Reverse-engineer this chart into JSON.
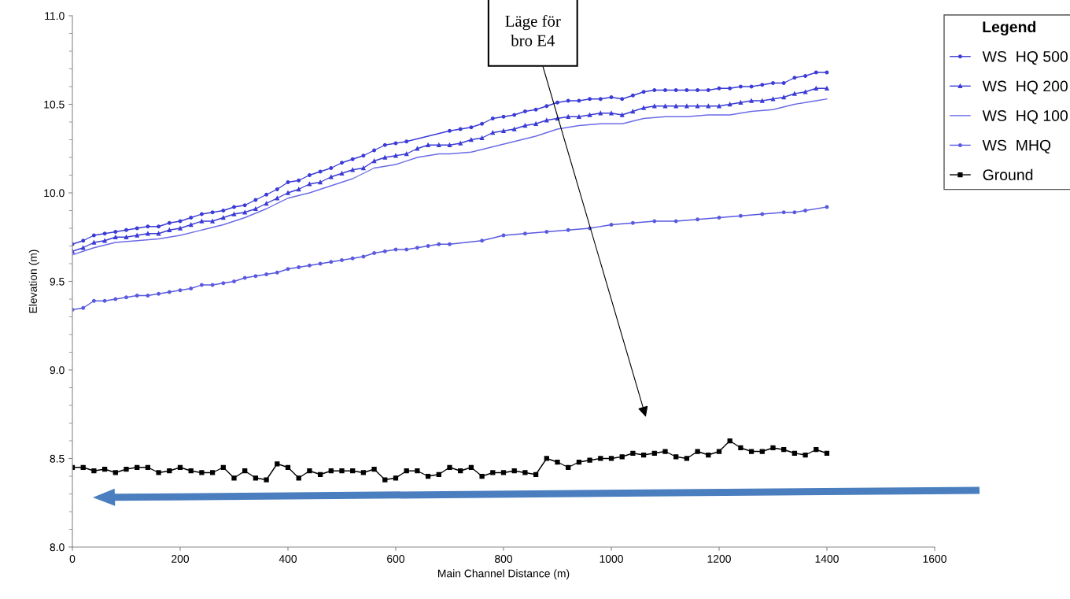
{
  "chart_data": {
    "type": "line",
    "xlabel": "Main Channel Distance (m)",
    "ylabel": "Elevation (m)",
    "legend_title": "Legend",
    "legend": "right",
    "grid": false,
    "xlim": [
      0,
      1600
    ],
    "xticks": [
      0,
      200,
      400,
      600,
      800,
      1000,
      1200,
      1400,
      1600
    ],
    "ylim": [
      8.0,
      11.0
    ],
    "yticks": [
      {
        "value": 8.0,
        "label": "8.0"
      },
      {
        "value": 8.5,
        "label": "8.5"
      },
      {
        "value": 9.0,
        "label": "9.0"
      },
      {
        "value": 9.5,
        "label": "9.5"
      },
      {
        "value": 10.0,
        "label": "10.0"
      },
      {
        "value": 10.5,
        "label": "10.5"
      },
      {
        "value": 11.0,
        "label": "11.0"
      }
    ],
    "annotations": [
      "Läge för\nbro E4"
    ],
    "series": [
      {
        "name": "WS  HQ 500",
        "color": "#3b3bd6",
        "marker": "circle",
        "x": [
          0,
          20,
          40,
          60,
          80,
          100,
          120,
          140,
          160,
          180,
          200,
          220,
          240,
          260,
          280,
          300,
          320,
          340,
          360,
          380,
          400,
          420,
          440,
          460,
          480,
          500,
          520,
          540,
          560,
          580,
          600,
          620,
          700,
          720,
          740,
          760,
          780,
          800,
          820,
          840,
          860,
          880,
          900,
          920,
          940,
          960,
          980,
          1000,
          1020,
          1040,
          1060,
          1080,
          1100,
          1120,
          1140,
          1160,
          1180,
          1200,
          1220,
          1240,
          1260,
          1280,
          1300,
          1320,
          1340,
          1360,
          1380,
          1400
        ],
        "values": [
          9.71,
          9.73,
          9.76,
          9.77,
          9.78,
          9.79,
          9.8,
          9.81,
          9.81,
          9.83,
          9.84,
          9.86,
          9.88,
          9.89,
          9.9,
          9.92,
          9.93,
          9.96,
          9.99,
          10.02,
          10.06,
          10.07,
          10.1,
          10.12,
          10.14,
          10.17,
          10.19,
          10.21,
          10.24,
          10.27,
          10.28,
          10.29,
          10.35,
          10.36,
          10.37,
          10.39,
          10.42,
          10.43,
          10.44,
          10.46,
          10.47,
          10.49,
          10.51,
          10.52,
          10.52,
          10.53,
          10.53,
          10.54,
          10.53,
          10.55,
          10.57,
          10.58,
          10.58,
          10.58,
          10.58,
          10.58,
          10.58,
          10.59,
          10.59,
          10.6,
          10.6,
          10.61,
          10.62,
          10.62,
          10.65,
          10.66,
          10.68,
          10.68
        ]
      },
      {
        "name": "WS  HQ 200",
        "color": "#3b3bd6",
        "marker": "triangle",
        "x": [
          0,
          20,
          40,
          60,
          80,
          100,
          120,
          140,
          160,
          180,
          200,
          220,
          240,
          260,
          280,
          300,
          320,
          340,
          360,
          380,
          400,
          420,
          440,
          460,
          480,
          500,
          520,
          540,
          560,
          580,
          600,
          620,
          640,
          660,
          680,
          700,
          720,
          740,
          760,
          780,
          800,
          820,
          840,
          860,
          880,
          900,
          920,
          940,
          960,
          980,
          1000,
          1020,
          1040,
          1060,
          1080,
          1100,
          1120,
          1140,
          1160,
          1180,
          1200,
          1220,
          1240,
          1260,
          1280,
          1300,
          1320,
          1340,
          1360,
          1380,
          1400
        ],
        "values": [
          9.67,
          9.69,
          9.72,
          9.73,
          9.75,
          9.75,
          9.76,
          9.77,
          9.77,
          9.79,
          9.8,
          9.82,
          9.84,
          9.84,
          9.86,
          9.88,
          9.89,
          9.91,
          9.94,
          9.97,
          10.0,
          10.02,
          10.05,
          10.06,
          10.09,
          10.11,
          10.13,
          10.14,
          10.18,
          10.2,
          10.21,
          10.22,
          10.25,
          10.27,
          10.27,
          10.27,
          10.28,
          10.3,
          10.31,
          10.34,
          10.35,
          10.36,
          10.38,
          10.39,
          10.41,
          10.42,
          10.43,
          10.43,
          10.44,
          10.45,
          10.45,
          10.44,
          10.46,
          10.48,
          10.49,
          10.49,
          10.49,
          10.49,
          10.49,
          10.49,
          10.49,
          10.5,
          10.51,
          10.52,
          10.52,
          10.53,
          10.54,
          10.56,
          10.57,
          10.59,
          10.59
        ]
      },
      {
        "name": "WS  HQ 100",
        "color": "#6b6be6",
        "marker": "none",
        "x": [
          0,
          40,
          80,
          120,
          160,
          200,
          240,
          280,
          320,
          360,
          400,
          440,
          480,
          520,
          560,
          600,
          640,
          680,
          700,
          740,
          780,
          820,
          860,
          900,
          940,
          980,
          1000,
          1020,
          1060,
          1100,
          1140,
          1180,
          1220,
          1260,
          1300,
          1340,
          1380,
          1400
        ],
        "values": [
          9.65,
          9.69,
          9.72,
          9.73,
          9.74,
          9.76,
          9.79,
          9.82,
          9.86,
          9.91,
          9.97,
          10.0,
          10.04,
          10.08,
          10.14,
          10.16,
          10.2,
          10.22,
          10.22,
          10.23,
          10.26,
          10.29,
          10.32,
          10.36,
          10.38,
          10.39,
          10.39,
          10.39,
          10.42,
          10.43,
          10.43,
          10.44,
          10.44,
          10.46,
          10.47,
          10.5,
          10.52,
          10.53
        ]
      },
      {
        "name": "WS  MHQ",
        "color": "#5a5ae0",
        "marker": "circle",
        "x": [
          0,
          20,
          40,
          60,
          80,
          100,
          120,
          140,
          160,
          180,
          200,
          220,
          240,
          260,
          280,
          300,
          320,
          340,
          360,
          380,
          400,
          420,
          440,
          460,
          480,
          500,
          520,
          540,
          560,
          580,
          600,
          620,
          640,
          660,
          680,
          700,
          760,
          800,
          840,
          880,
          920,
          960,
          1000,
          1040,
          1080,
          1120,
          1160,
          1200,
          1240,
          1280,
          1320,
          1340,
          1360,
          1400
        ],
        "values": [
          9.34,
          9.35,
          9.39,
          9.39,
          9.4,
          9.41,
          9.42,
          9.42,
          9.43,
          9.44,
          9.45,
          9.46,
          9.48,
          9.48,
          9.49,
          9.5,
          9.52,
          9.53,
          9.54,
          9.55,
          9.57,
          9.58,
          9.59,
          9.6,
          9.61,
          9.62,
          9.63,
          9.64,
          9.66,
          9.67,
          9.68,
          9.68,
          9.69,
          9.7,
          9.71,
          9.71,
          9.73,
          9.76,
          9.77,
          9.78,
          9.79,
          9.8,
          9.82,
          9.83,
          9.84,
          9.84,
          9.85,
          9.86,
          9.87,
          9.88,
          9.89,
          9.89,
          9.9,
          9.92
        ]
      },
      {
        "name": "Ground",
        "color": "#000000",
        "marker": "square",
        "x": [
          0,
          20,
          40,
          60,
          80,
          100,
          120,
          140,
          160,
          180,
          200,
          220,
          240,
          260,
          280,
          300,
          320,
          340,
          360,
          380,
          400,
          420,
          440,
          460,
          480,
          500,
          520,
          540,
          560,
          580,
          600,
          620,
          640,
          660,
          680,
          700,
          720,
          740,
          760,
          780,
          800,
          820,
          840,
          860,
          880,
          900,
          920,
          940,
          960,
          980,
          1000,
          1020,
          1040,
          1060,
          1080,
          1100,
          1120,
          1140,
          1160,
          1180,
          1200,
          1220,
          1240,
          1260,
          1280,
          1300,
          1320,
          1340,
          1360,
          1380,
          1400
        ],
        "values": [
          8.45,
          8.45,
          8.43,
          8.44,
          8.42,
          8.44,
          8.45,
          8.45,
          8.42,
          8.43,
          8.45,
          8.43,
          8.42,
          8.42,
          8.45,
          8.39,
          8.43,
          8.39,
          8.38,
          8.47,
          8.45,
          8.39,
          8.43,
          8.41,
          8.43,
          8.43,
          8.43,
          8.42,
          8.44,
          8.38,
          8.39,
          8.43,
          8.43,
          8.4,
          8.41,
          8.45,
          8.43,
          8.45,
          8.4,
          8.42,
          8.42,
          8.43,
          8.42,
          8.41,
          8.5,
          8.48,
          8.45,
          8.48,
          8.49,
          8.5,
          8.5,
          8.51,
          8.53,
          8.52,
          8.53,
          8.54,
          8.51,
          8.5,
          8.54,
          8.52,
          8.54,
          8.6,
          8.56,
          8.54,
          8.54,
          8.56,
          8.55,
          8.53,
          8.52,
          8.55,
          8.53
        ]
      }
    ]
  }
}
